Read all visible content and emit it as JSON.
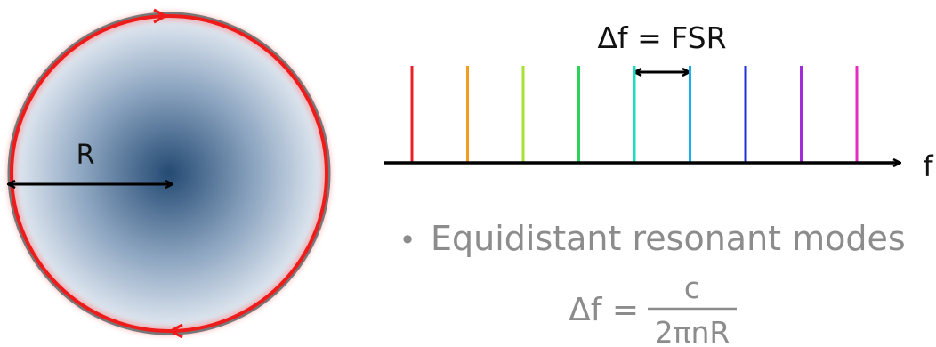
{
  "resonator": {
    "radius_label": "R",
    "ring_color": "#ee1b1b",
    "disk_center_color": "#244a73",
    "disk_edge_color": "#e8eef5",
    "rim_color": "#777777"
  },
  "spectrum": {
    "spacing_label": "Δf = FSR",
    "axis_label": "f",
    "mode_colors": [
      "#e8202a",
      "#f39c1f",
      "#a6e234",
      "#2ed15a",
      "#20dcbd",
      "#18aef0",
      "#1f33dd",
      "#a22ad8",
      "#e62cc0"
    ]
  },
  "notes": {
    "bullet": "•",
    "text": "Equidistant resonant modes"
  },
  "formula": {
    "lhs": "Δf =",
    "numerator": "c",
    "denominator": "2πnR"
  }
}
